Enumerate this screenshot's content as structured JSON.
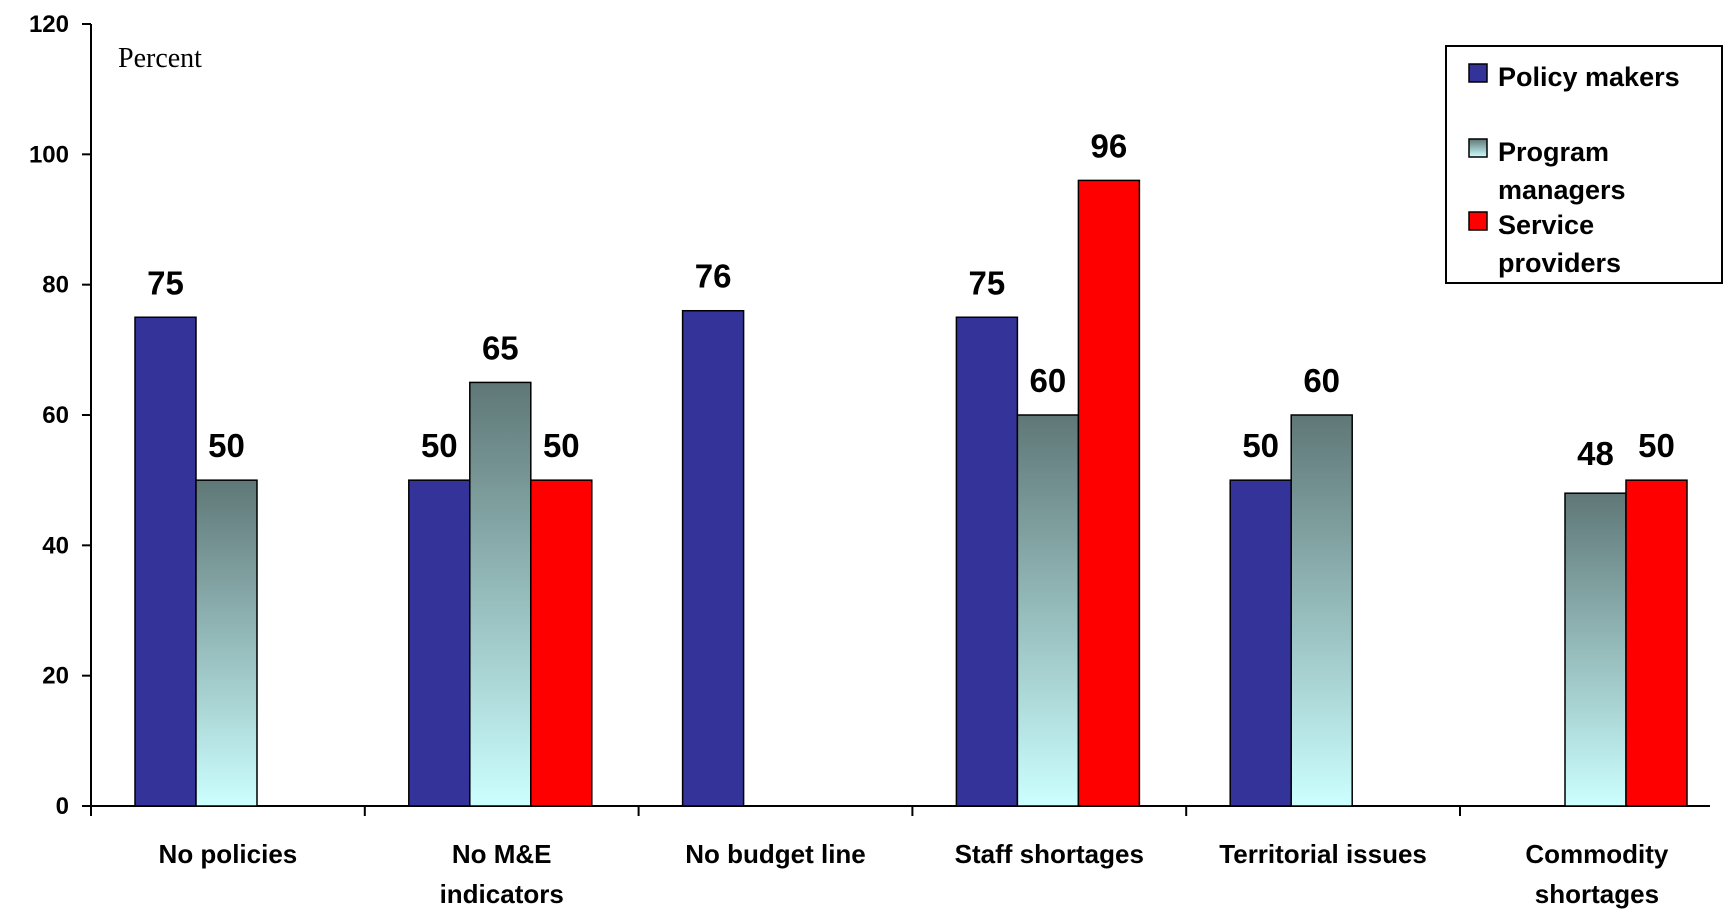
{
  "chart_data": {
    "type": "bar",
    "title": "",
    "xlabel": "",
    "ylabel": "Percent",
    "ylim": [
      0,
      120
    ],
    "yticks": [
      0,
      20,
      40,
      60,
      80,
      100,
      120
    ],
    "grid": false,
    "legend_position": "top-right",
    "categories": [
      [
        "No policies"
      ],
      [
        "No M&E",
        "indicators"
      ],
      [
        "No budget line"
      ],
      [
        "Staff shortages"
      ],
      [
        "Territorial issues"
      ],
      [
        "Commodity",
        "shortages"
      ]
    ],
    "series": [
      {
        "name": "Policy makers",
        "color": "#333399",
        "values": [
          75,
          50,
          76,
          75,
          50,
          null
        ]
      },
      {
        "name": "Program managers",
        "color": "#5f7777",
        "color_bottom": "#ccffff",
        "values": [
          50,
          65,
          null,
          60,
          60,
          48
        ]
      },
      {
        "name": "Service providers",
        "color": "#ff0000",
        "values": [
          null,
          50,
          null,
          96,
          null,
          50
        ]
      }
    ],
    "legend": {
      "entries": [
        [
          "Policy makers"
        ],
        [
          "Program",
          "managers"
        ],
        [
          "Service",
          "providers"
        ]
      ]
    }
  }
}
